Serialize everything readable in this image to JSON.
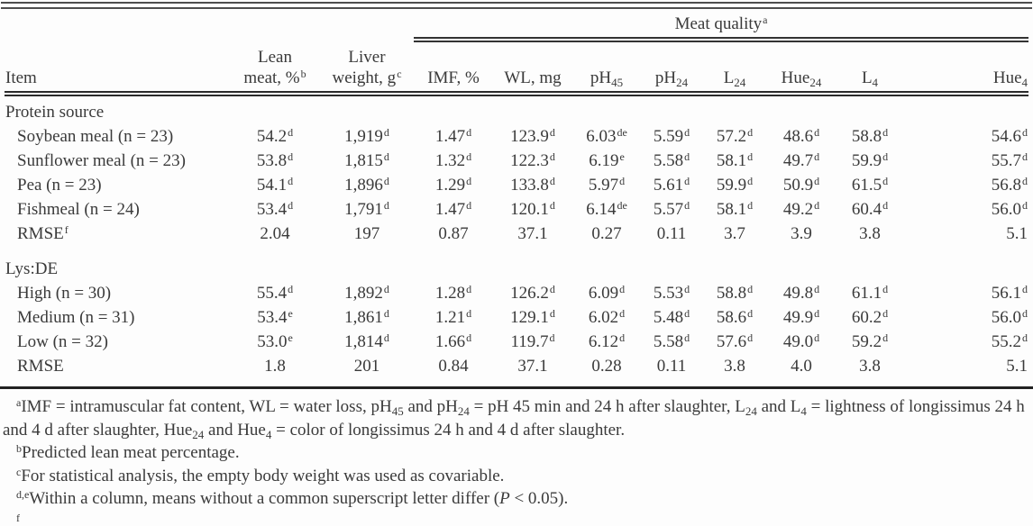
{
  "table": {
    "spanner": {
      "label": "Meat quality",
      "sup": "a"
    },
    "header": {
      "item": "Item",
      "cols": [
        {
          "key": "lean-meat",
          "top": "Lean",
          "bottom": "meat, %",
          "sup": "b"
        },
        {
          "key": "liver-weight",
          "top": "Liver",
          "bottom": "weight, g",
          "sup": "c"
        },
        {
          "key": "imf",
          "bottom": "IMF, %"
        },
        {
          "key": "wl",
          "bottom": "WL, mg"
        },
        {
          "key": "ph45",
          "bottom": "pH",
          "sub": "45"
        },
        {
          "key": "ph24",
          "bottom": "pH",
          "sub": "24"
        },
        {
          "key": "l24",
          "bottom": "L",
          "sub": "24"
        },
        {
          "key": "hue24",
          "bottom": "Hue",
          "sub": "24"
        },
        {
          "key": "l4",
          "bottom": "L",
          "sub": "4"
        },
        {
          "key": "hue4",
          "bottom": "Hue",
          "sub": "4"
        }
      ]
    },
    "rows": [
      {
        "type": "section",
        "label": "Protein source"
      },
      {
        "type": "data",
        "label": "Soybean meal (n = 23)",
        "cells": [
          [
            "54.2",
            "d"
          ],
          [
            "1,919",
            "d"
          ],
          [
            "1.47",
            "d"
          ],
          [
            "123.9",
            "d"
          ],
          [
            "6.03",
            "de"
          ],
          [
            "5.59",
            "d"
          ],
          [
            "57.2",
            "d"
          ],
          [
            "48.6",
            "d"
          ],
          [
            "58.8",
            "d"
          ],
          [
            "54.6",
            "d"
          ]
        ]
      },
      {
        "type": "data",
        "label": "Sunflower meal (n = 23)",
        "cells": [
          [
            "53.8",
            "d"
          ],
          [
            "1,815",
            "d"
          ],
          [
            "1.32",
            "d"
          ],
          [
            "122.3",
            "d"
          ],
          [
            "6.19",
            "e"
          ],
          [
            "5.58",
            "d"
          ],
          [
            "58.1",
            "d"
          ],
          [
            "49.7",
            "d"
          ],
          [
            "59.9",
            "d"
          ],
          [
            "55.7",
            "d"
          ]
        ]
      },
      {
        "type": "data",
        "label": "Pea (n = 23)",
        "cells": [
          [
            "54.1",
            "d"
          ],
          [
            "1,896",
            "d"
          ],
          [
            "1.29",
            "d"
          ],
          [
            "133.8",
            "d"
          ],
          [
            "5.97",
            "d"
          ],
          [
            "5.61",
            "d"
          ],
          [
            "59.9",
            "d"
          ],
          [
            "50.9",
            "d"
          ],
          [
            "61.5",
            "d"
          ],
          [
            "56.8",
            "d"
          ]
        ]
      },
      {
        "type": "data",
        "label": "Fishmeal (n = 24)",
        "cells": [
          [
            "53.4",
            "d"
          ],
          [
            "1,791",
            "d"
          ],
          [
            "1.47",
            "d"
          ],
          [
            "120.1",
            "d"
          ],
          [
            "6.14",
            "de"
          ],
          [
            "5.57",
            "d"
          ],
          [
            "58.1",
            "d"
          ],
          [
            "49.2",
            "d"
          ],
          [
            "60.4",
            "d"
          ],
          [
            "56.0",
            "d"
          ]
        ]
      },
      {
        "type": "data",
        "label": "RMSE",
        "label_sup": "f",
        "cells": [
          [
            "2.04",
            ""
          ],
          [
            "197",
            ""
          ],
          [
            "0.87",
            ""
          ],
          [
            "37.1",
            ""
          ],
          [
            "0.27",
            ""
          ],
          [
            "0.11",
            ""
          ],
          [
            "3.7",
            ""
          ],
          [
            "3.9",
            ""
          ],
          [
            "3.8",
            ""
          ],
          [
            "5.1",
            ""
          ]
        ]
      },
      {
        "type": "section",
        "label": "Lys:DE",
        "gap_before": true
      },
      {
        "type": "data",
        "label": "High (n = 30)",
        "cells": [
          [
            "55.4",
            "d"
          ],
          [
            "1,892",
            "d"
          ],
          [
            "1.28",
            "d"
          ],
          [
            "126.2",
            "d"
          ],
          [
            "6.09",
            "d"
          ],
          [
            "5.53",
            "d"
          ],
          [
            "58.8",
            "d"
          ],
          [
            "49.8",
            "d"
          ],
          [
            "61.1",
            "d"
          ],
          [
            "56.1",
            "d"
          ]
        ]
      },
      {
        "type": "data",
        "label": "Medium (n = 31)",
        "cells": [
          [
            "53.4",
            "e"
          ],
          [
            "1,861",
            "d"
          ],
          [
            "1.21",
            "d"
          ],
          [
            "129.1",
            "d"
          ],
          [
            "6.02",
            "d"
          ],
          [
            "5.48",
            "d"
          ],
          [
            "58.6",
            "d"
          ],
          [
            "49.9",
            "d"
          ],
          [
            "60.2",
            "d"
          ],
          [
            "56.0",
            "d"
          ]
        ]
      },
      {
        "type": "data",
        "label": "Low (n = 32)",
        "cells": [
          [
            "53.0",
            "e"
          ],
          [
            "1,814",
            "d"
          ],
          [
            "1.66",
            "d"
          ],
          [
            "119.7",
            "d"
          ],
          [
            "6.12",
            "d"
          ],
          [
            "5.58",
            "d"
          ],
          [
            "57.6",
            "d"
          ],
          [
            "49.0",
            "d"
          ],
          [
            "59.2",
            "d"
          ],
          [
            "55.2",
            "d"
          ]
        ]
      },
      {
        "type": "data",
        "label": "RMSE",
        "cells": [
          [
            "1.8",
            ""
          ],
          [
            "201",
            ""
          ],
          [
            "0.84",
            ""
          ],
          [
            "37.1",
            ""
          ],
          [
            "0.28",
            ""
          ],
          [
            "0.11",
            ""
          ],
          [
            "3.8",
            ""
          ],
          [
            "4.0",
            ""
          ],
          [
            "3.8",
            ""
          ],
          [
            "5.1",
            ""
          ]
        ]
      }
    ]
  },
  "footnotes": [
    {
      "runs": [
        [
          "sup",
          "a"
        ],
        [
          "t",
          "IMF = intramuscular fat content, WL = water loss, pH"
        ],
        [
          "sub",
          "45"
        ],
        [
          "t",
          " and pH"
        ],
        [
          "sub",
          "24"
        ],
        [
          "t",
          " = pH 45 min and 24 h after slaughter, L"
        ],
        [
          "sub",
          "24"
        ],
        [
          "t",
          " and L"
        ],
        [
          "sub",
          "4"
        ],
        [
          "t",
          " = lightness of longissimus 24 h and 4 d after slaughter, Hue"
        ],
        [
          "sub",
          "24"
        ],
        [
          "t",
          " and Hue"
        ],
        [
          "sub",
          "4"
        ],
        [
          "t",
          " = color of longissimus 24 h and 4 d after slaughter."
        ]
      ]
    },
    {
      "runs": [
        [
          "sup",
          "b"
        ],
        [
          "t",
          "Predicted lean meat percentage."
        ]
      ]
    },
    {
      "runs": [
        [
          "sup",
          "c"
        ],
        [
          "t",
          "For statistical analysis, the empty body weight was used as covariable."
        ]
      ]
    },
    {
      "runs": [
        [
          "sup",
          "d,e"
        ],
        [
          "t",
          "Within a column, means without a common superscript letter differ ("
        ],
        [
          "i",
          "P"
        ],
        [
          "t",
          " < 0.05)."
        ]
      ]
    },
    {
      "runs": [
        [
          "sup",
          "f"
        ]
      ]
    }
  ]
}
